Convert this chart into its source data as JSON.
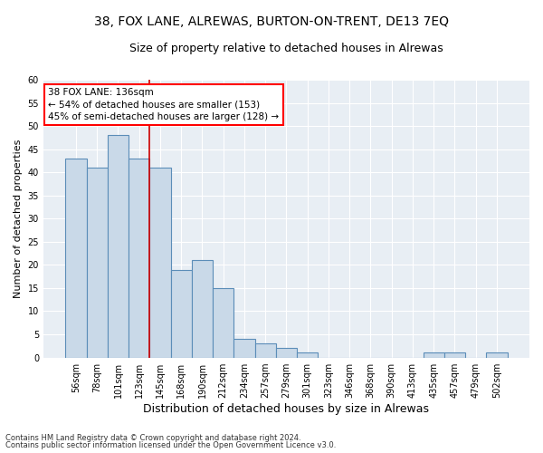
{
  "title1": "38, FOX LANE, ALREWAS, BURTON-ON-TRENT, DE13 7EQ",
  "title2": "Size of property relative to detached houses in Alrewas",
  "xlabel": "Distribution of detached houses by size in Alrewas",
  "ylabel": "Number of detached properties",
  "categories": [
    "56sqm",
    "78sqm",
    "101sqm",
    "123sqm",
    "145sqm",
    "168sqm",
    "190sqm",
    "212sqm",
    "234sqm",
    "257sqm",
    "279sqm",
    "301sqm",
    "323sqm",
    "346sqm",
    "368sqm",
    "390sqm",
    "413sqm",
    "435sqm",
    "457sqm",
    "479sqm",
    "502sqm"
  ],
  "values": [
    43,
    41,
    48,
    43,
    41,
    19,
    21,
    15,
    4,
    3,
    2,
    1,
    0,
    0,
    0,
    0,
    0,
    1,
    1,
    0,
    1
  ],
  "bar_color": "#c9d9e8",
  "bar_edge_color": "#5b8db8",
  "bar_linewidth": 0.8,
  "annotation_line1": "38 FOX LANE: 136sqm",
  "annotation_line2": "← 54% of detached houses are smaller (153)",
  "annotation_line3": "45% of semi-detached houses are larger (128) →",
  "property_line_x": 3.5,
  "property_line_color": "#cc0000",
  "ylim": [
    0,
    60
  ],
  "yticks": [
    0,
    5,
    10,
    15,
    20,
    25,
    30,
    35,
    40,
    45,
    50,
    55,
    60
  ],
  "footnote1": "Contains HM Land Registry data © Crown copyright and database right 2024.",
  "footnote2": "Contains public sector information licensed under the Open Government Licence v3.0.",
  "bg_color": "#e8eef4",
  "grid_color": "#ffffff",
  "title1_fontsize": 10,
  "title2_fontsize": 9,
  "xlabel_fontsize": 9,
  "ylabel_fontsize": 8,
  "tick_fontsize": 7,
  "annot_fontsize": 7.5,
  "footnote_fontsize": 6
}
